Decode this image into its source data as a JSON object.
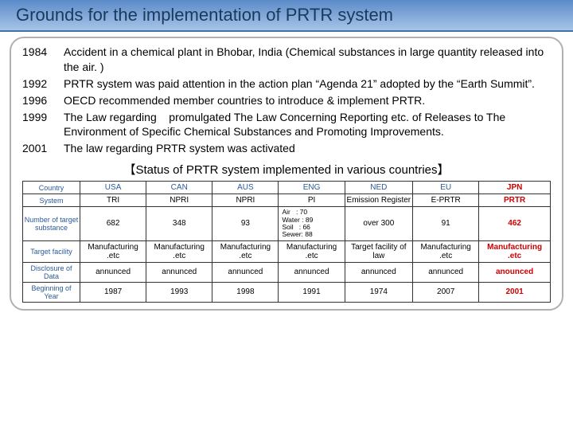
{
  "header": {
    "title": "Grounds for the implementation of PRTR system"
  },
  "timeline": [
    {
      "year": "1984",
      "text": "Accident in a chemical plant in Bhobar, India (Chemical substances in large quantity released into the air. )"
    },
    {
      "year": "1992",
      "text": "PRTR system was paid attention in the action plan “Agenda 21” adopted by the “Earth Summit”."
    },
    {
      "year": "1996",
      "text": "OECD recommended member countries to introduce & implement PRTR."
    },
    {
      "year": "1999",
      "text": "The Law regarding    promulgated The Law Concerning Reporting etc. of Releases to The Environment of Specific Chemical Substances and Promoting Improvements."
    },
    {
      "year": "2001",
      "text": "The law regarding PRTR system was activated"
    }
  ],
  "table_title": "【Status of PRTR system implemented in various countries】",
  "table": {
    "row_headers": [
      "Country",
      "System",
      "Number of target substance",
      "Target facility",
      "Disclosure of Data",
      "Beginning of Year"
    ],
    "col_headers": [
      "USA",
      "CAN",
      "AUS",
      "ENG",
      "NED",
      "EU",
      "JPN"
    ],
    "rows": [
      [
        "TRI",
        "NPRI",
        "NPRI",
        "PI",
        "Emission Register",
        "E-PRTR",
        "PRTR"
      ],
      [
        "682",
        "348",
        "93",
        "Air   : 70\nWater : 89\nSoil   : 66\nSewer: 88",
        "over 300",
        "91",
        "462"
      ],
      [
        "Manufacturing .etc",
        "Manufacturing .etc",
        "Manufacturing .etc",
        "Manufacturing .etc",
        "Target facility of law",
        "Manufacturing .etc",
        "Manufacturing .etc"
      ],
      [
        "annunced",
        "annunced",
        "annunced",
        "annunced",
        "annunced",
        "annunced",
        "anounced"
      ],
      [
        "1987",
        "1993",
        "1998",
        "1991",
        "1974",
        "2007",
        "2001"
      ]
    ],
    "colors": {
      "header_text": "#2a5a9a",
      "jpn_text": "#cc0000",
      "border": "#333333"
    }
  }
}
